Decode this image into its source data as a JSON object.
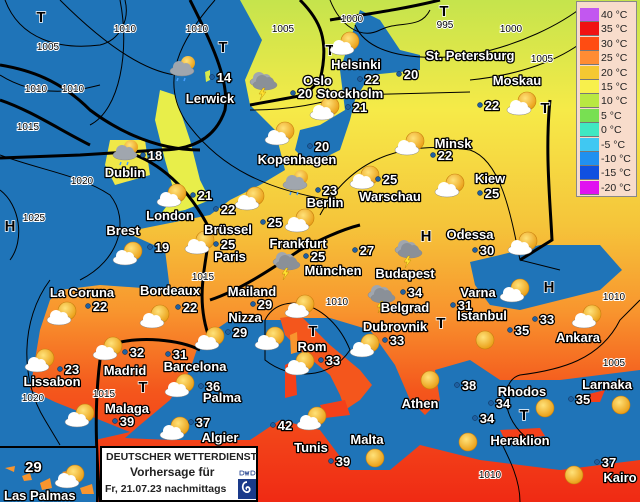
{
  "colors": {
    "sea": "#1f74b8",
    "text_fill": "#ffffff",
    "text_outline": "#000000",
    "sun": "#f5b820",
    "cloud": "#ffffff",
    "rain_cloud": "#9aa0a8"
  },
  "legend": [
    {
      "label": "40 °C",
      "color": "#c257f0"
    },
    {
      "label": "35 °C",
      "color": "#f01212"
    },
    {
      "label": "30 °C",
      "color": "#ff4c12"
    },
    {
      "label": "25 °C",
      "color": "#ff8c33"
    },
    {
      "label": "20 °C",
      "color": "#f5c832"
    },
    {
      "label": "15 °C",
      "color": "#f8f04c"
    },
    {
      "label": "10 °C",
      "color": "#b8e842"
    },
    {
      "label": "5 °C",
      "color": "#78e052"
    },
    {
      "label": "0 °C",
      "color": "#40e8c2"
    },
    {
      "label": "-5 °C",
      "color": "#40c8f2"
    },
    {
      "label": "-10 °C",
      "color": "#2090f0"
    },
    {
      "label": "-15 °C",
      "color": "#1050e0"
    },
    {
      "label": "-20 °C",
      "color": "#e012f0"
    }
  ],
  "cities": [
    {
      "name": "Lerwick",
      "temp": "14",
      "icon": "rain-cloud"
    },
    {
      "name": "Oslo",
      "temp": "20",
      "icon": "thunderstorm"
    },
    {
      "name": "Helsinki",
      "temp": "22",
      "icon": ""
    },
    {
      "name": "St. Petersburg",
      "temp": "20",
      "icon": "sun-cloud"
    },
    {
      "name": "Moskau",
      "temp": "22",
      "icon": "sun-cloud"
    },
    {
      "name": "Stockholm",
      "temp": "21",
      "icon": "sun-cloud"
    },
    {
      "name": "Dublin",
      "temp": "18",
      "icon": "rain-cloud"
    },
    {
      "name": "Kopenhagen",
      "temp": "20",
      "icon": "sun-cloud"
    },
    {
      "name": "Minsk",
      "temp": "22",
      "icon": "sun-cloud"
    },
    {
      "name": "Berlin",
      "temp": "23",
      "icon": "rain-cloud"
    },
    {
      "name": "Warschau",
      "temp": "25",
      "icon": "sun-cloud"
    },
    {
      "name": "Kiew",
      "temp": "25",
      "icon": "sun-cloud"
    },
    {
      "name": "London",
      "temp": "21",
      "icon": "sun-cloud"
    },
    {
      "name": "Brest",
      "temp": "19",
      "icon": "sun-cloud"
    },
    {
      "name": "Brüssel",
      "temp": "22",
      "icon": "sun-cloud"
    },
    {
      "name": "Frankfurt",
      "temp": "25",
      "icon": "sun-cloud"
    },
    {
      "name": "Odessa",
      "temp": "30",
      "icon": "sun-cloud"
    },
    {
      "name": "Paris",
      "temp": "25",
      "icon": "sun-cloud"
    },
    {
      "name": "München",
      "temp": "25",
      "icon": "thunderstorm"
    },
    {
      "name": "Budapest",
      "temp": "27",
      "icon": "thunderstorm"
    },
    {
      "name": "La Coruna",
      "temp": "22",
      "icon": "sun-cloud"
    },
    {
      "name": "Bordeaux",
      "temp": "22",
      "icon": "sun-cloud"
    },
    {
      "name": "Mailand",
      "temp": "29",
      "icon": "sun-cloud"
    },
    {
      "name": "Nizza",
      "temp": "29",
      "icon": "sun-cloud"
    },
    {
      "name": "Belgrad",
      "temp": "34",
      "icon": "thunderstorm"
    },
    {
      "name": "Varna",
      "temp": "31",
      "icon": "sun-cloud"
    },
    {
      "name": "Dubrovnik",
      "temp": "33",
      "icon": "sun-cloud"
    },
    {
      "name": "Istanbul",
      "temp": "35",
      "icon": "sun"
    },
    {
      "name": "Ankara",
      "temp": "33",
      "icon": "sun-cloud"
    },
    {
      "name": "Lissabon",
      "temp": "23",
      "icon": "sun-cloud"
    },
    {
      "name": "Madrid",
      "temp": "32",
      "icon": "sun-cloud"
    },
    {
      "name": "Barcelona",
      "temp": "31",
      "icon": "sun-cloud"
    },
    {
      "name": "Rom",
      "temp": "33",
      "icon": "sun-cloud"
    },
    {
      "name": "Palma",
      "temp": "36",
      "icon": "sun-cloud"
    },
    {
      "name": "Athen",
      "temp": "38",
      "icon": "sun"
    },
    {
      "name": "Rhodos",
      "temp": "34",
      "icon": "sun"
    },
    {
      "name": "Larnaka",
      "temp": "35",
      "icon": "sun"
    },
    {
      "name": "Malaga",
      "temp": "39",
      "icon": "sun-cloud"
    },
    {
      "name": "Algier",
      "temp": "37",
      "icon": "sun-cloud"
    },
    {
      "name": "Tunis",
      "temp": "42",
      "icon": "sun-cloud"
    },
    {
      "name": "Malta",
      "temp": "39",
      "icon": "sun"
    },
    {
      "name": "Heraklion",
      "temp": "34",
      "icon": "sun"
    },
    {
      "name": "Kairo",
      "temp": "37",
      "icon": "sun"
    }
  ],
  "extra_temps": [
    "34"
  ],
  "isobars": [
    "1005",
    "1010",
    "1010",
    "1010",
    "1005",
    "1000",
    "995",
    "1000",
    "1005",
    "1010",
    "1015",
    "1020",
    "1025",
    "1015",
    "1015",
    "1020",
    "1010",
    "1010",
    "1005",
    "1010"
  ],
  "pressure_centers": [
    "T",
    "T",
    "T",
    "T",
    "H",
    "T",
    "H",
    "T",
    "T",
    "H",
    "T",
    "T",
    "T"
  ],
  "inset": {
    "city": "Las Palmas",
    "temp": "29",
    "icon": "sun-cloud"
  },
  "infobox": {
    "line1": "DEUTSCHER WETTERDIENST",
    "line2": "Vorhersage für",
    "line3": "Fr, 21.07.23 nachmittags",
    "logo_text": "DWD"
  }
}
